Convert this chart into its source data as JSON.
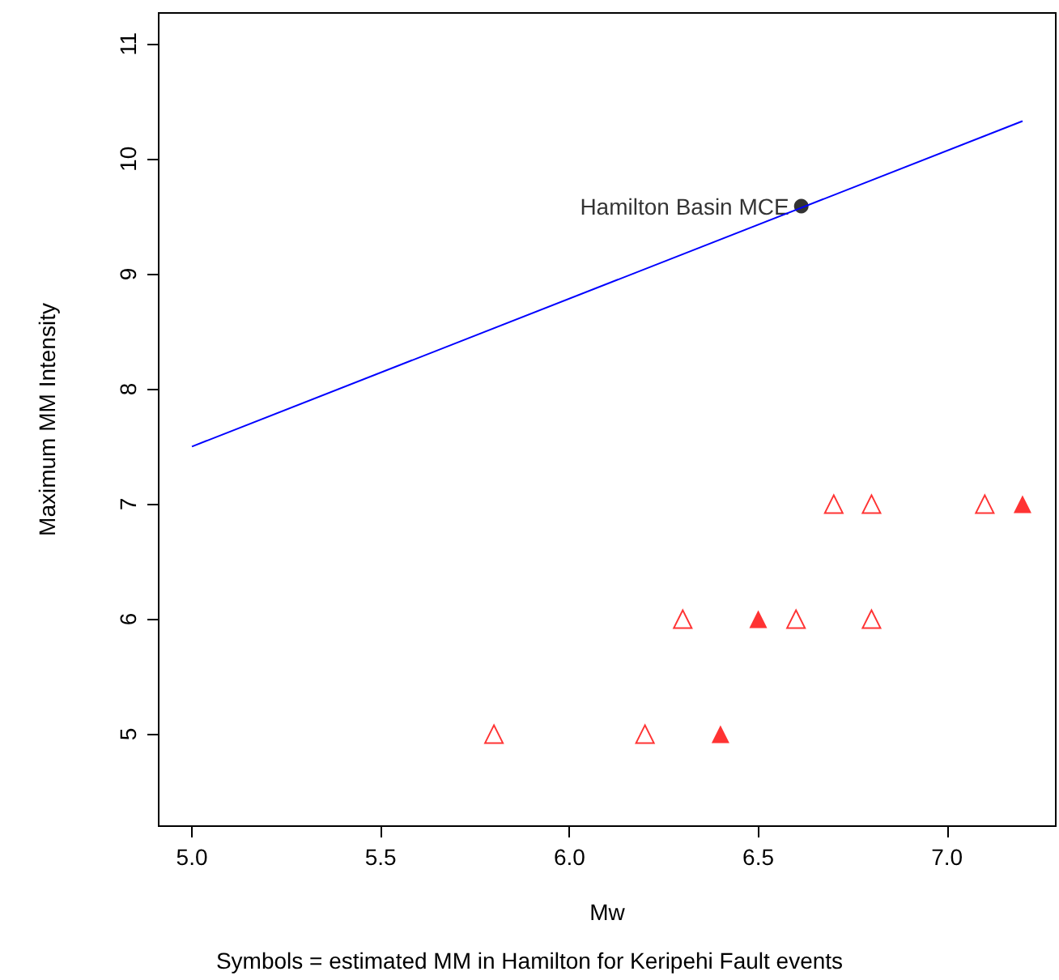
{
  "chart_data": {
    "type": "scatter",
    "xlabel": "Mw",
    "ylabel": "Maximum MM Intensity",
    "xlim": [
      4.912,
      7.288
    ],
    "ylim": [
      4.2,
      11.27
    ],
    "xticks": [
      {
        "value": 5,
        "label": "5.0"
      },
      {
        "value": 5.5,
        "label": "5.5"
      },
      {
        "value": 6,
        "label": "6.0"
      },
      {
        "value": 6.5,
        "label": "6.5"
      },
      {
        "value": 7,
        "label": "7.0"
      }
    ],
    "yticks": [
      5,
      6,
      7,
      8,
      9,
      10,
      11
    ],
    "grid": false,
    "series": [
      {
        "type": "line",
        "color": "#0000ff",
        "x": [
          5.0,
          7.2
        ],
        "values": [
          7.5,
          10.33
        ],
        "marker": "none",
        "line_style": "solid"
      },
      {
        "color": "#ff0000",
        "marker": "triangle-open",
        "x": [
          5.8,
          6.2,
          6.3,
          6.6,
          6.7,
          6.8,
          6.8,
          7.1
        ],
        "values": [
          5,
          5,
          6,
          6,
          7,
          7,
          6,
          7
        ]
      },
      {
        "color": "#ff0000",
        "marker": "triangle",
        "x": [
          6.4,
          6.5,
          7.2
        ],
        "values": [
          5,
          6,
          7
        ]
      },
      {
        "color": "#000000",
        "marker": "circle",
        "x": [
          6.614
        ],
        "values": [
          9.59
        ]
      }
    ],
    "annotations": [
      {
        "text": "Hamilton Basin MCE",
        "x": 6.614,
        "y": 9.59
      },
      "Symbols = estimated MM in Hamilton for Keripehi Fault events"
    ]
  }
}
